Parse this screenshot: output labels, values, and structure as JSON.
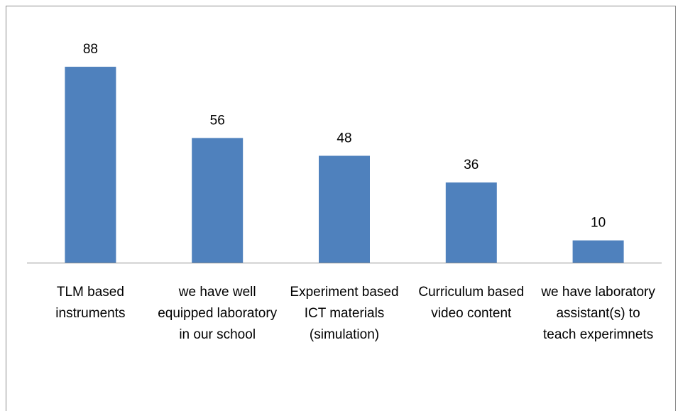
{
  "chart_data": {
    "type": "bar",
    "categories": [
      "TLM based instruments",
      "we have well equipped laboratory in our school",
      "Experiment based ICT materials (simulation)",
      "Curriculum based video content",
      "we have laboratory assistant(s) to teach experimnets"
    ],
    "values": [
      88,
      56,
      48,
      36,
      10
    ],
    "color": "#4f81bd"
  }
}
